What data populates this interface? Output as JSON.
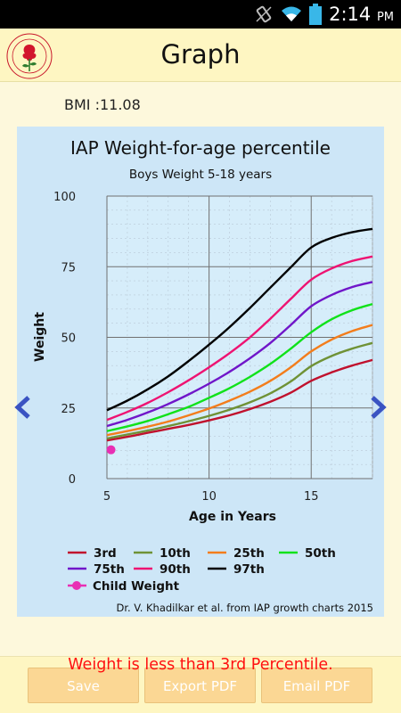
{
  "status_bar": {
    "time": "2:14",
    "ampm": "PM"
  },
  "app": {
    "title": "Graph",
    "logo_icon": "iap-rose-logo-icon"
  },
  "bmi_text": "BMI :11.08",
  "chart_data": {
    "type": "line",
    "title": "IAP Weight-for-age percentile",
    "subtitle": "Boys Weight 5-18 years",
    "xlabel": "Age in Years",
    "ylabel": "Weight",
    "xlim": [
      5,
      18
    ],
    "ylim": [
      0,
      100
    ],
    "x_ticks": [
      5,
      10,
      15
    ],
    "y_ticks": [
      0,
      25,
      50,
      75,
      100
    ],
    "grid": true,
    "legend_placement": "bottom",
    "x": [
      5,
      6,
      7,
      8,
      9,
      10,
      11,
      12,
      13,
      14,
      15,
      16,
      17,
      18
    ],
    "series": [
      {
        "name": "3rd",
        "color": "#c0112d",
        "values": [
          13.5,
          14.8,
          16.2,
          17.6,
          19.0,
          20.6,
          22.4,
          24.6,
          27.2,
          30.4,
          34.6,
          37.6,
          40.0,
          42.0
        ]
      },
      {
        "name": "10th",
        "color": "#6f9236",
        "values": [
          14.2,
          15.6,
          17.0,
          18.6,
          20.3,
          22.2,
          24.4,
          27.0,
          30.2,
          34.4,
          39.8,
          43.4,
          46.0,
          48.0
        ]
      },
      {
        "name": "25th",
        "color": "#f37d1c",
        "values": [
          15.4,
          16.8,
          18.4,
          20.2,
          22.4,
          24.8,
          27.6,
          30.8,
          34.6,
          39.4,
          45.0,
          49.2,
          52.2,
          54.4
        ]
      },
      {
        "name": "50th",
        "color": "#10e21a",
        "values": [
          16.8,
          18.5,
          20.4,
          22.8,
          25.4,
          28.6,
          32.0,
          36.0,
          40.6,
          46.0,
          51.8,
          56.4,
          59.6,
          61.8
        ]
      },
      {
        "name": "75th",
        "color": "#7016c9",
        "values": [
          18.6,
          20.8,
          23.4,
          26.4,
          29.8,
          33.6,
          37.8,
          42.6,
          48.0,
          54.4,
          61.0,
          65.0,
          67.8,
          69.6
        ]
      },
      {
        "name": "90th",
        "color": "#ee1372",
        "values": [
          20.8,
          23.6,
          26.8,
          30.6,
          34.8,
          39.4,
          44.4,
          50.0,
          56.6,
          63.6,
          70.4,
          74.4,
          77.0,
          78.6
        ]
      },
      {
        "name": "97th",
        "color": "#000000",
        "values": [
          24.2,
          27.6,
          31.6,
          36.2,
          41.6,
          47.4,
          53.6,
          60.4,
          67.6,
          74.8,
          81.8,
          85.2,
          87.2,
          88.4
        ]
      }
    ],
    "child_point": {
      "name": "Child Weight",
      "color": "#e82fb4",
      "x": 5.2,
      "y": 10.2
    },
    "credit": "Dr. V. Khadilkar et al. from IAP growth charts 2015"
  },
  "warning": "Weight is less than 3rd Percentile.",
  "buttons": {
    "save": "Save",
    "export_pdf": "Export PDF",
    "email_pdf": "Email PDF"
  }
}
